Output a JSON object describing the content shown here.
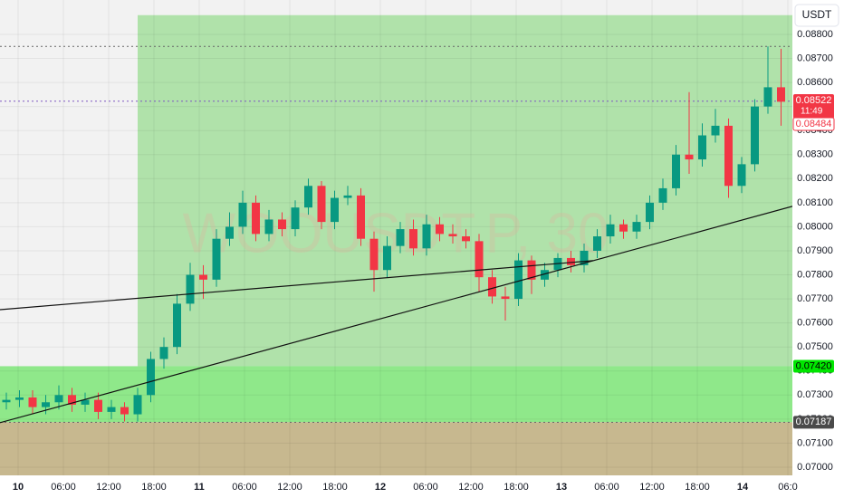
{
  "chart_data": {
    "type": "candlestick",
    "currency": "USDT",
    "watermark": "WOOUSDT.P, 30",
    "up_color": "#089981",
    "down_color": "#f23645",
    "open": [
      0.0727,
      0.0728,
      0.0729,
      0.0725,
      0.0727,
      0.073,
      0.0726,
      0.0728,
      0.0723,
      0.0725,
      0.0722,
      0.073,
      0.0745,
      0.075,
      0.0768,
      0.078,
      0.0778,
      0.0795,
      0.08,
      0.081,
      0.0797,
      0.0803,
      0.0799,
      0.0808,
      0.0817,
      0.0802,
      0.0812,
      0.0813,
      0.0795,
      0.0782,
      0.0792,
      0.0799,
      0.0791,
      0.0801,
      0.0797,
      0.0796,
      0.0794,
      0.0779,
      0.0771,
      0.077,
      0.0786,
      0.0778,
      0.0782,
      0.0787,
      0.0784,
      0.079,
      0.0796,
      0.0801,
      0.0798,
      0.0802,
      0.081,
      0.0816,
      0.083,
      0.0828,
      0.0838,
      0.0842,
      0.0817,
      0.0826,
      0.085,
      0.0858
    ],
    "high": [
      0.0731,
      0.0732,
      0.0732,
      0.073,
      0.0734,
      0.0733,
      0.0731,
      0.0731,
      0.0728,
      0.0727,
      0.0733,
      0.0748,
      0.0754,
      0.0772,
      0.0785,
      0.0784,
      0.0799,
      0.0806,
      0.0815,
      0.0813,
      0.0807,
      0.0806,
      0.0811,
      0.082,
      0.0819,
      0.0815,
      0.0817,
      0.0816,
      0.0798,
      0.0796,
      0.0802,
      0.0803,
      0.0805,
      0.0804,
      0.0801,
      0.0799,
      0.0797,
      0.0782,
      0.0775,
      0.0789,
      0.0788,
      0.0785,
      0.0789,
      0.079,
      0.0793,
      0.0799,
      0.0805,
      0.0803,
      0.0805,
      0.0813,
      0.082,
      0.0834,
      0.0856,
      0.0843,
      0.0849,
      0.0845,
      0.0829,
      0.0853,
      0.0875,
      0.0874
    ],
    "low": [
      0.0724,
      0.0725,
      0.0722,
      0.0722,
      0.0724,
      0.0723,
      0.0723,
      0.072,
      0.072,
      0.0719,
      0.0719,
      0.0727,
      0.0741,
      0.0747,
      0.0765,
      0.077,
      0.0775,
      0.0792,
      0.0797,
      0.0794,
      0.0794,
      0.0796,
      0.0796,
      0.0805,
      0.0799,
      0.0799,
      0.0809,
      0.0792,
      0.0773,
      0.0779,
      0.0789,
      0.0788,
      0.0788,
      0.0794,
      0.0793,
      0.0791,
      0.0773,
      0.0768,
      0.0761,
      0.0767,
      0.0772,
      0.0775,
      0.0779,
      0.0781,
      0.0781,
      0.0787,
      0.0793,
      0.0795,
      0.0795,
      0.0799,
      0.0807,
      0.0813,
      0.0822,
      0.0825,
      0.0835,
      0.0812,
      0.0814,
      0.0823,
      0.0847,
      0.0842
    ],
    "close": [
      0.0728,
      0.0729,
      0.0725,
      0.0727,
      0.073,
      0.0726,
      0.0728,
      0.0723,
      0.0725,
      0.0722,
      0.073,
      0.0745,
      0.075,
      0.0768,
      0.078,
      0.0778,
      0.0795,
      0.08,
      0.081,
      0.0797,
      0.0803,
      0.0799,
      0.0808,
      0.0817,
      0.0802,
      0.0812,
      0.0813,
      0.0795,
      0.0782,
      0.0792,
      0.0799,
      0.0791,
      0.0801,
      0.0797,
      0.0796,
      0.0794,
      0.0779,
      0.0771,
      0.077,
      0.0786,
      0.0778,
      0.0782,
      0.0787,
      0.0784,
      0.079,
      0.0796,
      0.0801,
      0.0798,
      0.0802,
      0.081,
      0.0816,
      0.083,
      0.0828,
      0.0838,
      0.0842,
      0.0817,
      0.0826,
      0.085,
      0.0858,
      0.0852
    ],
    "ylim": [
      0.06966,
      0.08943
    ],
    "yticks": [
      {
        "value": 0.07,
        "label": "0.07000"
      },
      {
        "value": 0.071,
        "label": "0.07100"
      },
      {
        "value": 0.072,
        "label": "0.07200"
      },
      {
        "value": 0.073,
        "label": "0.07300"
      },
      {
        "value": 0.074,
        "label": "0.07400"
      },
      {
        "value": 0.075,
        "label": "0.07500"
      },
      {
        "value": 0.076,
        "label": "0.07600"
      },
      {
        "value": 0.077,
        "label": "0.07700"
      },
      {
        "value": 0.078,
        "label": "0.07800"
      },
      {
        "value": 0.079,
        "label": "0.07900"
      },
      {
        "value": 0.08,
        "label": "0.08000"
      },
      {
        "value": 0.081,
        "label": "0.08100"
      },
      {
        "value": 0.082,
        "label": "0.08200"
      },
      {
        "value": 0.083,
        "label": "0.08300"
      },
      {
        "value": 0.084,
        "label": "0.08400"
      },
      {
        "value": 0.085,
        "label": "0.08500"
      },
      {
        "value": 0.086,
        "label": "0.08600"
      },
      {
        "value": 0.087,
        "label": "0.08700"
      },
      {
        "value": 0.088,
        "label": "0.08800"
      }
    ],
    "time_labels": [
      "10",
      "06:00",
      "12:00",
      "18:00",
      "11",
      "06:00",
      "12:00",
      "18:00",
      "12",
      "06:00",
      "12:00",
      "18:00",
      "13",
      "06:00",
      "12:00",
      "18:00",
      "14",
      "06:0"
    ],
    "zones": [
      {
        "from": 0.0742,
        "to": 0.0888,
        "color": "#b0e2aa"
      },
      {
        "from": 0.07187,
        "to": 0.0742,
        "color": "#8fe88a"
      },
      {
        "from": 0.069,
        "to": 0.07187,
        "color": "#c7b88f"
      }
    ],
    "levels": [
      {
        "value": 0.0875,
        "color": "#666666"
      },
      {
        "value": 0.08522,
        "color": "#7e57c2"
      },
      {
        "value": 0.07187,
        "color": "#666666"
      }
    ],
    "trendlines": [
      {
        "start": 0.07655,
        "end": 0.07859
      },
      {
        "start": 0.07185,
        "end": 0.08085
      }
    ],
    "price_tags": [
      {
        "value": 0.0742,
        "label": "0.07420",
        "bg": "#00e600",
        "fg": "#000000"
      },
      {
        "value": 0.07187,
        "label": "0.07187",
        "bg": "#4a4a4a",
        "fg": "#ffffff"
      },
      {
        "value": 0.08522,
        "label": "0.08522",
        "bg": "#f23645",
        "fg": "#ffffff"
      },
      {
        "value": 0.08484,
        "label": "0.08484",
        "bg": "#ffffff",
        "fg": "#f23645"
      }
    ],
    "countdown": "11:49"
  }
}
